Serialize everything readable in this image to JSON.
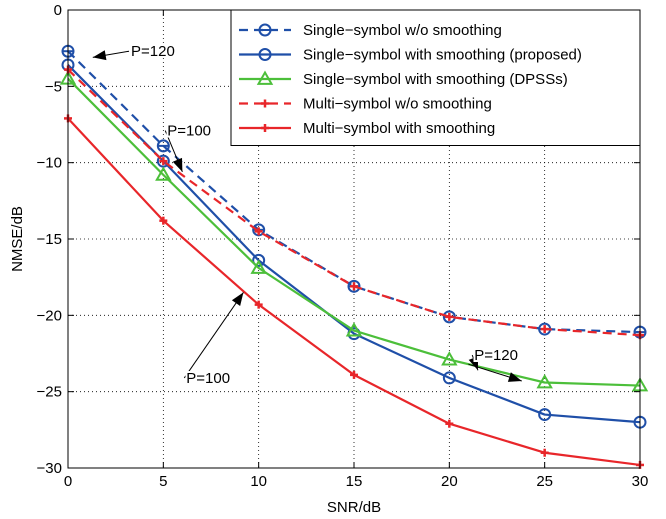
{
  "chart_data": {
    "type": "line",
    "xlabel": "SNR/dB",
    "ylabel": "NMSE/dB",
    "xlim": [
      0,
      30
    ],
    "ylim": [
      -30,
      0
    ],
    "xticks": [
      0,
      5,
      10,
      15,
      20,
      25,
      30
    ],
    "yticks": [
      0,
      -5,
      -10,
      -15,
      -20,
      -25,
      -30
    ],
    "x": [
      0,
      5,
      10,
      15,
      20,
      25,
      30
    ],
    "grid": true,
    "legend_position": "top-right",
    "series": [
      {
        "name": "Single−symbol w/o smoothing",
        "values": [
          -2.7,
          -8.9,
          -14.4,
          -18.1,
          -20.1,
          -20.9,
          -21.1
        ],
        "color": "#1f4fa8",
        "dash": "dashed",
        "marker": "circle-line"
      },
      {
        "name": "Single−symbol with smoothing (proposed)",
        "values": [
          -3.6,
          -9.9,
          -16.4,
          -21.2,
          -24.1,
          -26.5,
          -27.0
        ],
        "color": "#1f4fa8",
        "dash": "solid",
        "marker": "circle"
      },
      {
        "name": "Single−symbol with smoothing (DPSSs)",
        "values": [
          -4.5,
          -10.8,
          -16.9,
          -21.0,
          -22.9,
          -24.4,
          -24.6
        ],
        "color": "#4cbf3a",
        "dash": "solid",
        "marker": "triangle"
      },
      {
        "name": "Multi−symbol w/o smoothing",
        "values": [
          -3.9,
          -9.9,
          -14.5,
          -18.1,
          -20.1,
          -20.9,
          -21.3
        ],
        "color": "#e8262a",
        "dash": "dashed",
        "marker": "plus"
      },
      {
        "name": "Multi−symbol with smoothing",
        "values": [
          -7.1,
          -13.8,
          -19.3,
          -23.9,
          -27.1,
          -29.0,
          -29.8
        ],
        "color": "#e8262a",
        "dash": "solid",
        "marker": "plus"
      }
    ],
    "annotations": [
      {
        "text": "P=120",
        "x": 3.2,
        "y": -2.7,
        "arrow_to": [
          1.3,
          -3.1
        ]
      },
      {
        "text": "P=100",
        "x": 5.1,
        "y": -7.9,
        "arrow_to": [
          6.0,
          -10.6
        ]
      },
      {
        "text": "P=100",
        "x": 6.1,
        "y": -24.1,
        "arrow_to": [
          9.2,
          -18.5
        ]
      },
      {
        "text": "P=120",
        "x": 21.2,
        "y": -22.6,
        "arrow_to": [
          21.5,
          -23.6
        ]
      },
      {
        "text": "",
        "x": 21.0,
        "y": -23.2,
        "arrow_to": [
          23.8,
          -24.3
        ]
      }
    ]
  }
}
